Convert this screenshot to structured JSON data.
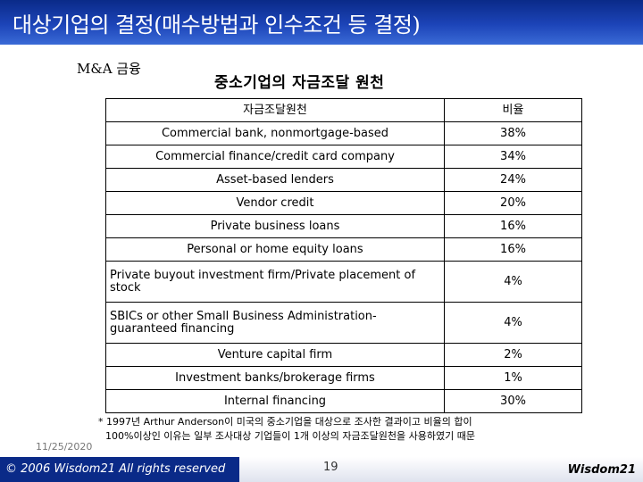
{
  "header": {
    "title": "대상기업의 결정(매수방법과 인수조건 등 결정)"
  },
  "subject": "M&A 금융",
  "slide_title": "중소기업의 자금조달 원천",
  "table": {
    "headers": [
      "자금조달원천",
      "비율"
    ],
    "rows": [
      {
        "source": "Commercial bank, nonmortgage-based",
        "ratio": "38%"
      },
      {
        "source": "Commercial finance/credit card company",
        "ratio": "34%"
      },
      {
        "source": "Asset-based lenders",
        "ratio": "24%"
      },
      {
        "source": "Vendor credit",
        "ratio": "20%"
      },
      {
        "source": "Private business loans",
        "ratio": "16%"
      },
      {
        "source": "Personal or home equity loans",
        "ratio": "16%"
      },
      {
        "source": "Private buyout investment firm/Private placement of stock",
        "ratio": "4%"
      },
      {
        "source": "SBICs or other Small Business Administration-guaranteed financing",
        "ratio": "4%"
      },
      {
        "source": "Venture capital firm",
        "ratio": "2%"
      },
      {
        "source": "Investment banks/brokerage firms",
        "ratio": "1%"
      },
      {
        "source": "Internal financing",
        "ratio": "30%"
      }
    ]
  },
  "footnote": {
    "line1": "* 1997년 Arthur Anderson이 미국의 중소기업을 대상으로 조사한 결과이고 비율의 합이",
    "line2": "100%이상인 이유는 일부 조사대상 기업들이 1개 이상의 자금조달원천을 사용하였기 때문"
  },
  "footer": {
    "date": "11/25/2020",
    "copyright": "© 2006  Wisdom21 All rights reserved",
    "page": "19",
    "brand": "Wisdom21"
  }
}
